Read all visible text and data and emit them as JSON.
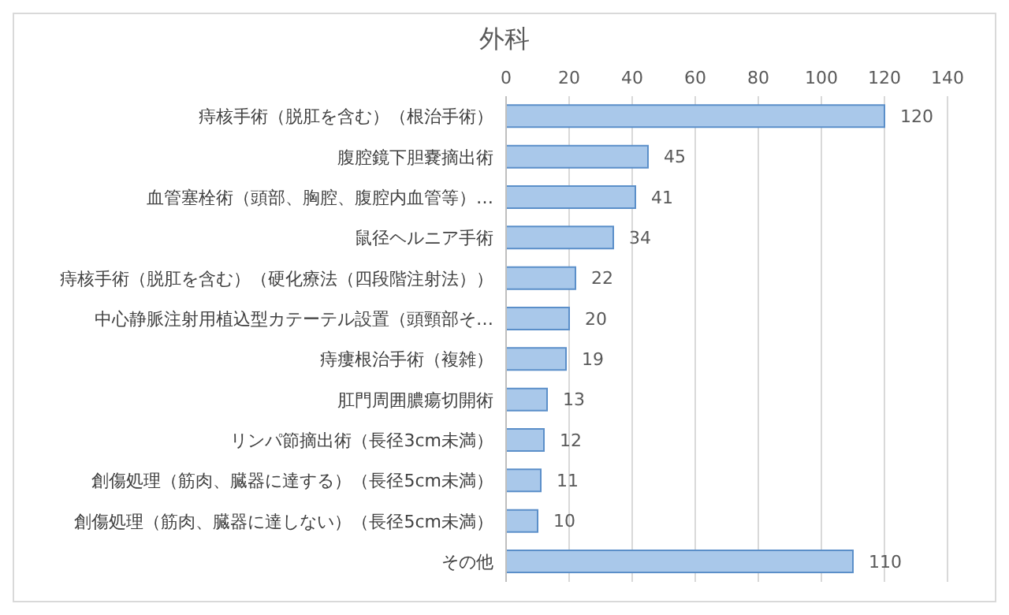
{
  "chart_data": {
    "type": "bar",
    "title": "外科",
    "orientation": "horizontal",
    "categories": [
      "痔核手術（脱肛を含む）（根治手術）",
      "腹腔鏡下胆嚢摘出術",
      "血管塞栓術（頭部、胸腔、腹腔内血管等）…",
      "鼠径ヘルニア手術",
      "痔核手術（脱肛を含む）（硬化療法（四段階注射法））",
      "中心静脈注射用植込型カテーテル設置（頭頸部そ…",
      "痔瘻根治手術（複雑）",
      "肛門周囲膿瘍切開術",
      "リンパ節摘出術（長径3cm未満）",
      "創傷処理（筋肉、臓器に達する）（長径5cm未満）",
      "創傷処理（筋肉、臓器に達しない）（長径5cm未満）",
      "その他"
    ],
    "values": [
      120,
      45,
      41,
      34,
      22,
      20,
      19,
      13,
      12,
      11,
      10,
      110
    ],
    "color": "#a9c8ea",
    "xlim": [
      0,
      140
    ],
    "xticks": [
      0,
      20,
      40,
      60,
      80,
      100,
      120,
      140
    ],
    "grid": "x",
    "data_labels": true
  }
}
